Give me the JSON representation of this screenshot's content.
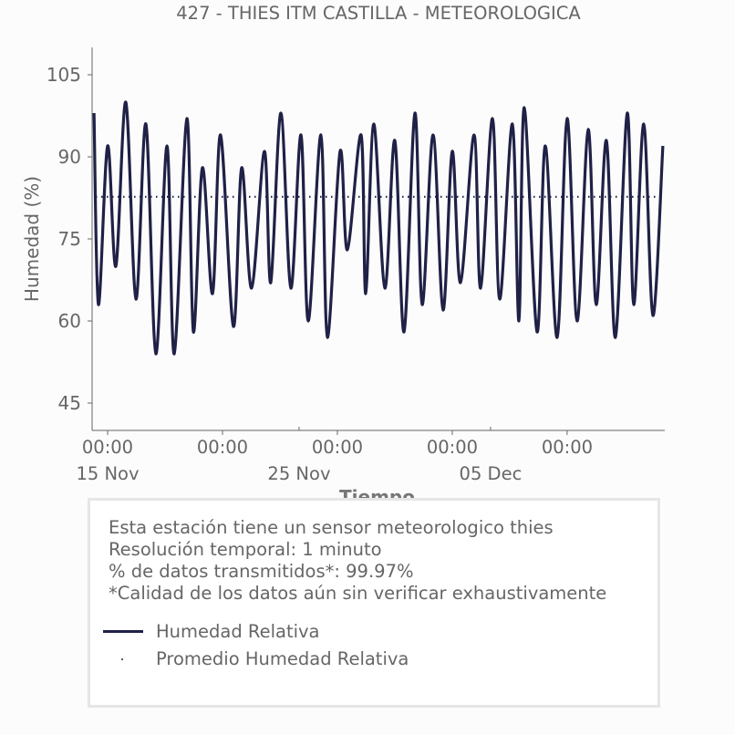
{
  "chart_data": {
    "type": "line",
    "title": "427 - THIES ITM CASTILLA - METEOROLOGICA",
    "xlabel": "Tiempo",
    "ylabel": "Humedad (%)",
    "ylim": [
      40,
      110
    ],
    "xlim_days_since_15nov": [
      -0.81,
      29.1
    ],
    "yticks": [
      45,
      60,
      75,
      90,
      105
    ],
    "xticks_major": [
      {
        "day": 0,
        "time": "00:00",
        "date": "15 Nov"
      },
      {
        "day": 6,
        "time": "00:00",
        "date": ""
      },
      {
        "day": 12,
        "time": "00:00",
        "date": ""
      },
      {
        "day": 18,
        "time": "00:00",
        "date": ""
      },
      {
        "day": 24,
        "time": "00:00",
        "date": ""
      }
    ],
    "xticks_date": [
      {
        "day": 0,
        "label": "15 Nov"
      },
      {
        "day": 10,
        "label": "25 Nov"
      },
      {
        "day": 20,
        "label": "05 Dec"
      }
    ],
    "series": [
      {
        "name": "Humedad Relativa",
        "color": "#1f2146",
        "style": "solid",
        "x_days": [
          -0.71,
          -0.48,
          0,
          0.43,
          0.95,
          1.48,
          2.0,
          2.52,
          3.1,
          3.48,
          4.14,
          4.48,
          4.95,
          5.48,
          5.9,
          6.57,
          7.0,
          7.52,
          8.19,
          8.52,
          9.05,
          9.57,
          10.1,
          10.48,
          11.14,
          11.48,
          12.14,
          12.52,
          13.24,
          13.48,
          13.9,
          14.48,
          15.0,
          15.48,
          16.05,
          16.43,
          17.0,
          17.52,
          18.0,
          18.43,
          19.14,
          19.48,
          20.1,
          20.48,
          21.14,
          21.48,
          21.76,
          22.43,
          22.86,
          23.48,
          24.0,
          24.52,
          25.1,
          25.52,
          26.05,
          26.52,
          27.14,
          27.48,
          28.0,
          28.48,
          29.0
        ],
        "y": [
          98,
          63,
          92,
          70,
          100,
          64,
          96,
          54,
          92,
          54,
          97,
          58,
          88,
          65,
          94,
          59,
          88,
          66,
          91,
          67,
          98,
          66,
          94,
          60,
          94,
          57,
          91,
          73,
          94,
          65,
          96,
          66,
          93,
          58,
          98,
          63,
          94,
          62,
          91,
          67,
          94,
          66,
          97,
          64,
          96,
          60,
          99,
          58,
          92,
          57,
          97,
          60,
          95,
          63,
          93,
          57,
          98,
          63,
          96,
          61,
          92
        ]
      },
      {
        "name": "Promedio Humedad Relativa",
        "color": "#1f2146",
        "style": "dotted",
        "value": 82.7
      }
    ]
  },
  "info": {
    "lines": [
      "Esta estación tiene un sensor meteorologico thies",
      "Resolución temporal: 1 minuto",
      "% de datos transmitidos*: 99.97%",
      "*Calidad de los datos aún sin verificar exhaustivamente"
    ]
  }
}
